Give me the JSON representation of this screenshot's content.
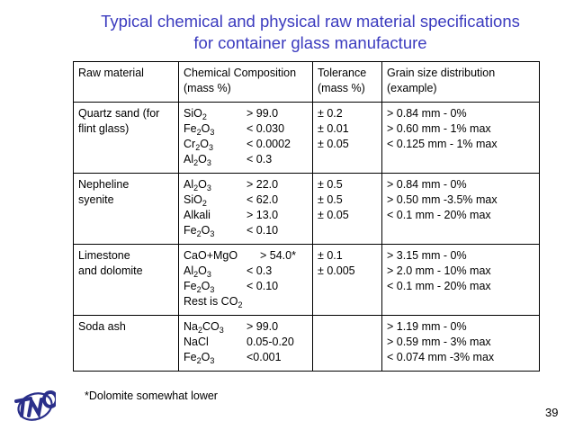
{
  "title": {
    "line1": "Typical chemical and physical raw material specifications",
    "line2": "for container glass manufacture"
  },
  "headers": {
    "material": "Raw material",
    "composition": "Chemical Composition (mass %)",
    "tolerance": "Tolerance (mass %)",
    "grain": "Grain size distribution (example)"
  },
  "rows": [
    {
      "material": [
        "Quartz sand (for",
        "flint glass)"
      ],
      "composition": [
        {
          "a": "SiO",
          "s": "2",
          "b": "",
          "v": "> 99.0"
        },
        {
          "a": "Fe",
          "s": "2",
          "b": "O",
          "s2": "3",
          "v": "< 0.030"
        },
        {
          "a": "Cr",
          "s": "2",
          "b": "O",
          "s2": "3",
          "v": "< 0.0002"
        },
        {
          "a": "Al",
          "s": "2",
          "b": "O",
          "s2": "3",
          "v": "< 0.3"
        }
      ],
      "tolerance": [
        "± 0.2",
        "± 0.01",
        "± 0.05"
      ],
      "grain": [
        "> 0.84 mm - 0%",
        "> 0.60 mm - 1% max",
        "< 0.125 mm - 1% max"
      ]
    },
    {
      "material": [
        "Nepheline",
        "syenite"
      ],
      "composition": [
        {
          "a": "Al",
          "s": "2",
          "b": "O",
          "s2": "3",
          "v": "> 22.0"
        },
        {
          "a": "SiO",
          "s": "2",
          "b": "",
          "v": "< 62.0"
        },
        {
          "a": "Alkali",
          "v": "> 13.0"
        },
        {
          "a": "Fe",
          "s": "2",
          "b": "O",
          "s2": "3",
          "v": "< 0.10"
        }
      ],
      "tolerance": [
        "± 0.5",
        "± 0.5",
        "± 0.05"
      ],
      "grain": [
        "> 0.84 mm - 0%",
        "> 0.50 mm -3.5% max",
        "< 0.1 mm - 20% max"
      ]
    },
    {
      "material": [
        "Limestone",
        "and dolomite"
      ],
      "composition": [
        {
          "a": "CaO+MgO",
          "v": "> 54.0*"
        },
        {
          "a": "Al",
          "s": "2",
          "b": "O",
          "s2": "3",
          "v": "< 0.3"
        },
        {
          "a": "Fe",
          "s": "2",
          "b": "O",
          "s2": "3",
          "v": "< 0.10"
        },
        {
          "a": "Rest is CO",
          "s": "2"
        }
      ],
      "tolerance": [
        "± 0.1",
        "± 0.005"
      ],
      "grain": [
        "> 3.15 mm - 0%",
        "> 2.0 mm - 10% max",
        "< 0.1 mm - 20% max"
      ]
    },
    {
      "material": [
        "Soda ash"
      ],
      "composition": [
        {
          "a": "Na",
          "s": "2",
          "b": "CO",
          "s2": "3",
          "v": "> 99.0"
        },
        {
          "a": "NaCl",
          "v": "0.05-0.20"
        },
        {
          "a": "Fe",
          "s": "2",
          "b": "O",
          "s2": "3",
          "v": "<0.001"
        }
      ],
      "tolerance": [],
      "grain": [
        "> 1.19 mm - 0%",
        "> 0.59 mm - 3% max",
        "< 0.074 mm -3% max"
      ]
    }
  ],
  "footnote": "*Dolomite somewhat lower",
  "page_number": "39",
  "logo": {
    "text": "TNO",
    "color": "#2a2f8a"
  }
}
